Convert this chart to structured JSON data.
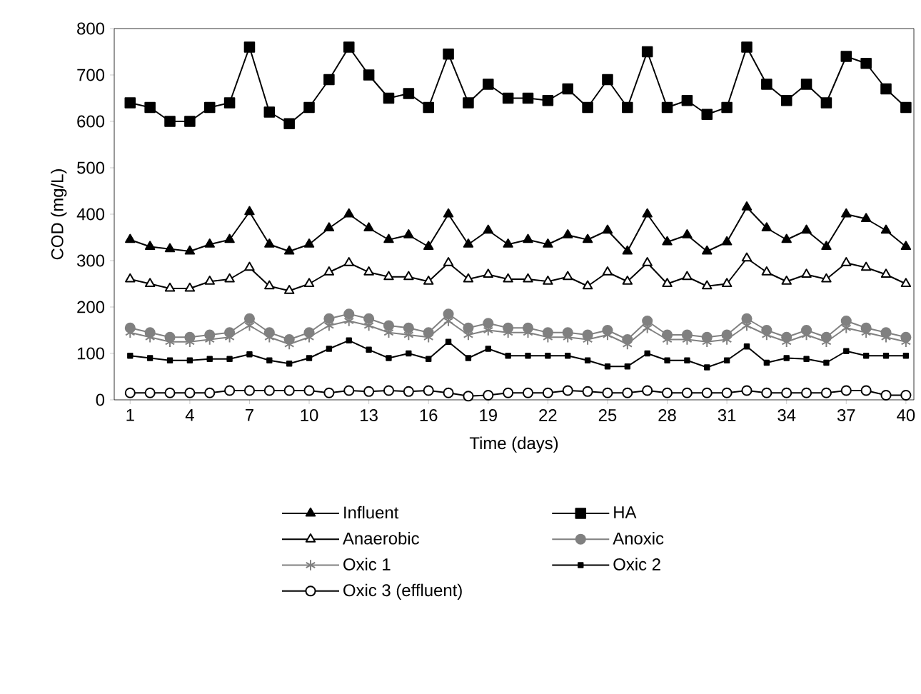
{
  "chart_data": {
    "type": "line",
    "xlabel": "Time (days)",
    "ylabel": "COD (mg/L)",
    "x": [
      1,
      2,
      3,
      4,
      5,
      6,
      7,
      8,
      9,
      10,
      11,
      12,
      13,
      14,
      15,
      16,
      17,
      18,
      19,
      20,
      21,
      22,
      23,
      24,
      25,
      26,
      27,
      28,
      29,
      30,
      31,
      32,
      33,
      34,
      35,
      36,
      37,
      38,
      39,
      40
    ],
    "xlim": [
      0.2,
      40.4
    ],
    "xticks": [
      1,
      4,
      7,
      10,
      13,
      16,
      19,
      22,
      25,
      28,
      31,
      34,
      37,
      40
    ],
    "ylim": [
      0,
      800
    ],
    "yticks": [
      0,
      100,
      200,
      300,
      400,
      500,
      600,
      700,
      800
    ],
    "grid": false,
    "legend": "bottom",
    "line_style": "solid",
    "series": [
      {
        "name": "Influent",
        "color": "#000000",
        "marker": "triangle",
        "values": [
          345,
          330,
          325,
          320,
          335,
          345,
          405,
          335,
          320,
          335,
          370,
          400,
          370,
          345,
          355,
          330,
          400,
          335,
          365,
          335,
          345,
          335,
          355,
          345,
          365,
          320,
          400,
          340,
          355,
          320,
          340,
          415,
          370,
          345,
          365,
          330,
          400,
          390,
          365,
          330
        ]
      },
      {
        "name": "HA",
        "color": "#000000",
        "marker": "square",
        "values": [
          640,
          630,
          600,
          600,
          630,
          640,
          760,
          620,
          595,
          630,
          690,
          760,
          700,
          650,
          660,
          630,
          745,
          640,
          680,
          650,
          650,
          645,
          670,
          630,
          690,
          630,
          750,
          630,
          645,
          615,
          630,
          760,
          680,
          645,
          680,
          640,
          740,
          725,
          670,
          630
        ]
      },
      {
        "name": "Anaerobic",
        "color": "#000000",
        "marker": "triangle",
        "values": [
          260,
          250,
          240,
          240,
          255,
          260,
          285,
          245,
          235,
          250,
          275,
          295,
          275,
          265,
          265,
          255,
          295,
          260,
          270,
          260,
          260,
          255,
          265,
          245,
          275,
          255,
          295,
          250,
          265,
          245,
          250,
          305,
          275,
          255,
          270,
          260,
          295,
          285,
          270,
          250
        ]
      },
      {
        "name": "Anoxic",
        "color": "#808080",
        "marker": "circle",
        "values": [
          155,
          145,
          135,
          135,
          140,
          145,
          175,
          145,
          130,
          145,
          175,
          185,
          175,
          160,
          155,
          145,
          185,
          155,
          165,
          155,
          155,
          145,
          145,
          140,
          150,
          130,
          170,
          140,
          140,
          135,
          140,
          175,
          150,
          135,
          150,
          135,
          170,
          155,
          145,
          135
        ]
      },
      {
        "name": "Oxic 1",
        "color": "#808080",
        "marker": "cross",
        "values": [
          145,
          135,
          125,
          125,
          130,
          135,
          160,
          135,
          120,
          135,
          160,
          170,
          160,
          145,
          140,
          135,
          170,
          140,
          150,
          145,
          145,
          135,
          135,
          130,
          140,
          120,
          155,
          130,
          130,
          125,
          130,
          160,
          140,
          125,
          140,
          125,
          155,
          145,
          135,
          125
        ]
      },
      {
        "name": "Oxic 2",
        "color": "#000000",
        "marker": "square",
        "values": [
          95,
          90,
          85,
          85,
          88,
          88,
          98,
          85,
          78,
          90,
          110,
          128,
          108,
          90,
          100,
          88,
          125,
          90,
          110,
          95,
          95,
          95,
          95,
          85,
          72,
          72,
          100,
          85,
          85,
          70,
          85,
          115,
          80,
          90,
          88,
          80,
          105,
          95,
          95,
          95
        ]
      },
      {
        "name": "Oxic 3 (effluent)",
        "color": "#000000",
        "marker": "circle",
        "values": [
          15,
          15,
          15,
          15,
          15,
          20,
          20,
          20,
          20,
          20,
          15,
          20,
          18,
          20,
          18,
          20,
          15,
          8,
          10,
          15,
          15,
          15,
          20,
          18,
          15,
          15,
          20,
          15,
          15,
          15,
          15,
          20,
          15,
          15,
          15,
          15,
          20,
          20,
          10,
          10
        ]
      }
    ]
  }
}
